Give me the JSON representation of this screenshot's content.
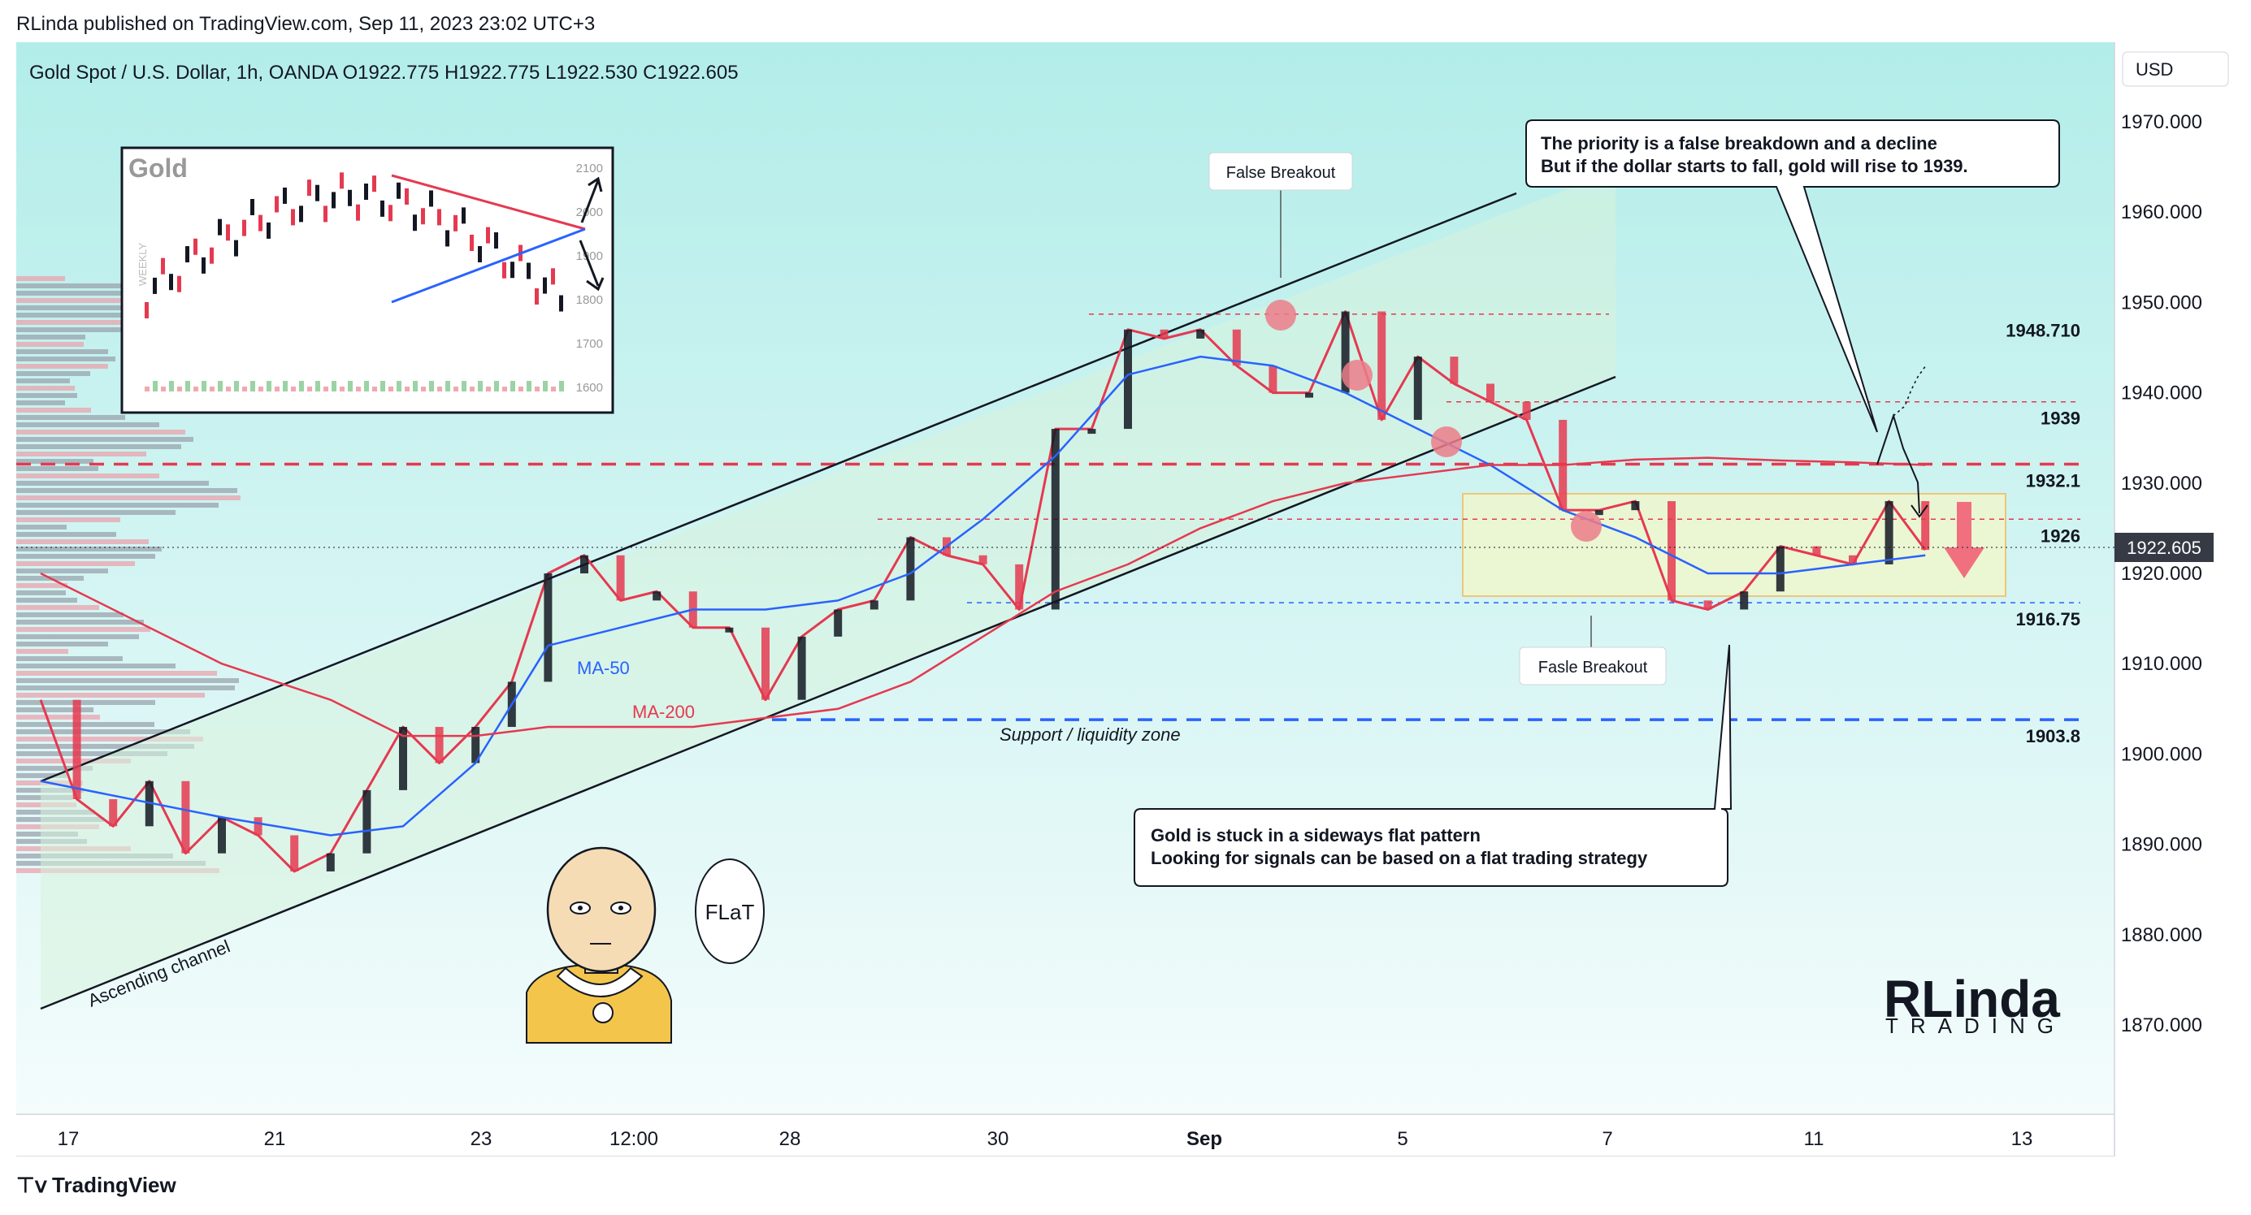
{
  "header": {
    "published": "RLinda published on TradingView.com, Sep 11, 2023 23:02 UTC+3",
    "symbol_line": "Gold Spot / U.S. Dollar, 1h, OANDA  O1922.775  H1922.775  L1922.530  C1922.605",
    "currency_button": "USD"
  },
  "footer": {
    "brand": "TradingView"
  },
  "chart_data": {
    "type": "line",
    "title": "Gold Spot / U.S. Dollar, 1h, OANDA",
    "ohlc": {
      "open": 1922.775,
      "high": 1922.775,
      "low": 1922.53,
      "close": 1922.605
    },
    "last_price_label": "1922.605",
    "y_axis": {
      "ticks": [
        "1970.000",
        "1960.000",
        "1950.000",
        "1940.000",
        "1930.000",
        "1920.000",
        "1910.000",
        "1900.000",
        "1890.000",
        "1880.000",
        "1870.000"
      ],
      "ylim": [
        1862,
        1972
      ]
    },
    "x_axis": {
      "ticks": [
        "17",
        "21",
        "23",
        "12:00",
        "28",
        "30",
        "Sep",
        "5",
        "7",
        "11",
        "13"
      ]
    },
    "series": [
      {
        "name": "price",
        "color": "#e53950",
        "x": [
          0,
          2,
          4,
          6,
          8,
          10,
          12,
          14,
          16,
          18,
          20,
          22,
          24,
          26,
          28,
          30,
          32,
          34,
          36,
          38,
          40,
          42,
          44,
          46,
          48,
          50,
          52,
          54,
          56,
          58,
          60,
          62,
          64,
          66,
          68,
          70,
          72,
          74,
          76,
          78,
          80,
          82,
          84,
          86,
          88,
          90,
          92,
          94,
          96,
          98,
          100,
          102,
          104
        ],
        "values": [
          1906,
          1895,
          1892,
          1897,
          1889,
          1893,
          1891,
          1887,
          1889,
          1896,
          1903,
          1899,
          1903,
          1908,
          1920,
          1922,
          1917,
          1918,
          1914,
          1914,
          1906,
          1913,
          1916,
          1917,
          1924,
          1922,
          1921,
          1916,
          1936,
          1936,
          1947,
          1946,
          1947,
          1943,
          1940,
          1940,
          1949,
          1937,
          1944,
          1941,
          1939,
          1937,
          1927,
          1927,
          1928,
          1917,
          1916,
          1918,
          1923,
          1922,
          1921,
          1928,
          1922.6
        ]
      },
      {
        "name": "MA-50",
        "color": "#2962ff",
        "x": [
          0,
          10,
          16,
          20,
          24,
          28,
          32,
          36,
          40,
          44,
          48,
          52,
          56,
          60,
          64,
          68,
          72,
          76,
          80,
          84,
          88,
          92,
          96,
          100,
          104
        ],
        "values": [
          1897,
          1893,
          1891,
          1892,
          1899,
          1912,
          1914,
          1916,
          1916,
          1917,
          1920,
          1926,
          1933,
          1942,
          1944,
          1943,
          1940,
          1936,
          1932,
          1927,
          1924,
          1920,
          1920,
          1921,
          1922
        ]
      },
      {
        "name": "MA-200",
        "color": "#e53950",
        "x": [
          0,
          10,
          16,
          20,
          24,
          28,
          32,
          36,
          40,
          44,
          48,
          52,
          56,
          60,
          64,
          68,
          72,
          76,
          80,
          84,
          88,
          92,
          96,
          100,
          104
        ],
        "values": [
          1920,
          1910,
          1906,
          1902,
          1902,
          1903,
          1903,
          1903,
          1904,
          1905,
          1908,
          1913,
          1918,
          1921,
          1925,
          1928,
          1930,
          1931,
          1932,
          1932,
          1932.6,
          1932.8,
          1932.5,
          1932.3,
          1932
        ]
      }
    ],
    "levels": [
      {
        "label": "1948.710",
        "value": 1948.71
      },
      {
        "label": "1939",
        "value": 1939
      },
      {
        "label": "1932.1",
        "value": 1932.1
      },
      {
        "label": "1926",
        "value": 1926
      },
      {
        "label": "1916.75",
        "value": 1916.75
      },
      {
        "label": "1903.8",
        "value": 1903.8
      }
    ],
    "annotations": {
      "ma50": "MA-50",
      "ma200": "MA-200",
      "channel": "Ascending channel",
      "support": "Support / liquidity zone",
      "false_breakout_top": "False Breakout",
      "false_breakout_bottom": "Fasle Breakout",
      "callout1_line1": "The priority is a false breakdown and a decline",
      "callout1_line2": "But if the dollar starts to fall, gold will rise to 1939.",
      "callout2_line1": "Gold is stuck in a sideways flat pattern",
      "callout2_line2": "Looking for signals can be based on a flat trading strategy",
      "speech": "FLaT",
      "logo": "RLinda",
      "logo_sub": "TRADING"
    },
    "inset": {
      "title": "Gold",
      "side_label": "WEEKLY",
      "ticks": [
        "2100",
        "2000",
        "1900",
        "1800",
        "1700",
        "1600"
      ]
    },
    "grid": false
  }
}
